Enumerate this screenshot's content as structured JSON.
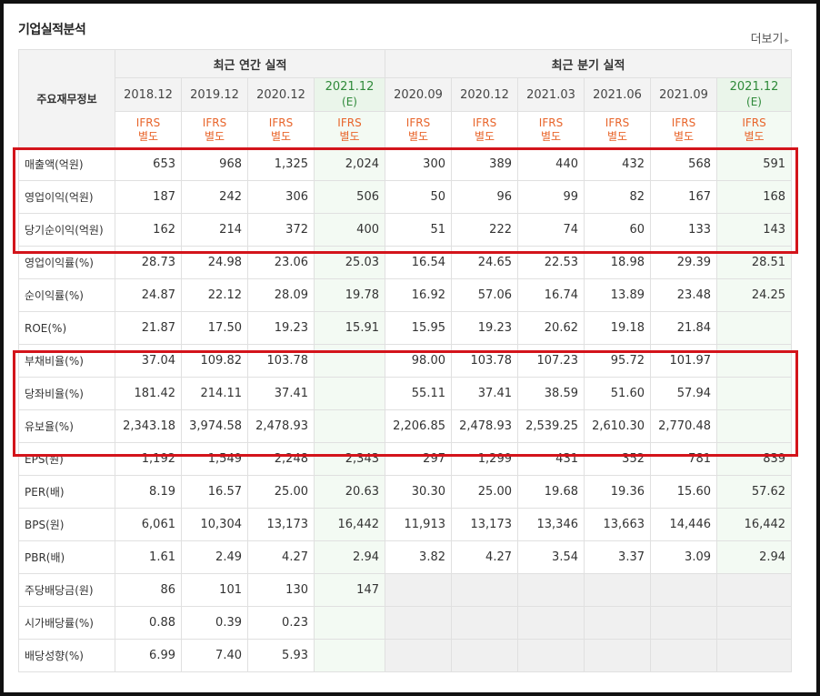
{
  "section_title": "기업실적분석",
  "more_label": "더보기",
  "more_arrow": "▸",
  "corner_label": "주요재무정보",
  "groups": {
    "annual": "최근 연간 실적",
    "quarterly": "최근 분기 실적"
  },
  "periods": [
    "2018.12",
    "2019.12",
    "2020.12",
    "2021.12",
    "2020.09",
    "2020.12",
    "2021.03",
    "2021.06",
    "2021.09",
    "2021.12"
  ],
  "estimate_mark": "(E)",
  "ifrs_top": "IFRS",
  "ifrs_bottom": "별도",
  "rows": [
    {
      "label": "매출액(억원)",
      "values": [
        "653",
        "968",
        "1,325",
        "2,024",
        "300",
        "389",
        "440",
        "432",
        "568",
        "591"
      ]
    },
    {
      "label": "영업이익(억원)",
      "values": [
        "187",
        "242",
        "306",
        "506",
        "50",
        "96",
        "99",
        "82",
        "167",
        "168"
      ]
    },
    {
      "label": "당기순이익(억원)",
      "values": [
        "162",
        "214",
        "372",
        "400",
        "51",
        "222",
        "74",
        "60",
        "133",
        "143"
      ]
    },
    {
      "label": "영업이익률(%)",
      "values": [
        "28.73",
        "24.98",
        "23.06",
        "25.03",
        "16.54",
        "24.65",
        "22.53",
        "18.98",
        "29.39",
        "28.51"
      ]
    },
    {
      "label": "순이익률(%)",
      "values": [
        "24.87",
        "22.12",
        "28.09",
        "19.78",
        "16.92",
        "57.06",
        "16.74",
        "13.89",
        "23.48",
        "24.25"
      ]
    },
    {
      "label": "ROE(%)",
      "values": [
        "21.87",
        "17.50",
        "19.23",
        "15.91",
        "15.95",
        "19.23",
        "20.62",
        "19.18",
        "21.84",
        ""
      ]
    },
    {
      "label": "부채비율(%)",
      "values": [
        "37.04",
        "109.82",
        "103.78",
        "",
        "98.00",
        "103.78",
        "107.23",
        "95.72",
        "101.97",
        ""
      ]
    },
    {
      "label": "당좌비율(%)",
      "values": [
        "181.42",
        "214.11",
        "37.41",
        "",
        "55.11",
        "37.41",
        "38.59",
        "51.60",
        "57.94",
        ""
      ]
    },
    {
      "label": "유보율(%)",
      "values": [
        "2,343.18",
        "3,974.58",
        "2,478.93",
        "",
        "2,206.85",
        "2,478.93",
        "2,539.25",
        "2,610.30",
        "2,770.48",
        ""
      ]
    },
    {
      "label": "EPS(원)",
      "values": [
        "1,192",
        "1,549",
        "2,248",
        "2,343",
        "297",
        "1,299",
        "431",
        "352",
        "781",
        "839"
      ]
    },
    {
      "label": "PER(배)",
      "values": [
        "8.19",
        "16.57",
        "25.00",
        "20.63",
        "30.30",
        "25.00",
        "19.68",
        "19.36",
        "15.60",
        "57.62"
      ]
    },
    {
      "label": "BPS(원)",
      "values": [
        "6,061",
        "10,304",
        "13,173",
        "16,442",
        "11,913",
        "13,173",
        "13,346",
        "13,663",
        "14,446",
        "16,442"
      ]
    },
    {
      "label": "PBR(배)",
      "values": [
        "1.61",
        "2.49",
        "4.27",
        "2.94",
        "3.82",
        "4.27",
        "3.54",
        "3.37",
        "3.09",
        "2.94"
      ]
    },
    {
      "label": "주당배당금(원)",
      "values": [
        "86",
        "101",
        "130",
        "147"
      ]
    },
    {
      "label": "시가배당률(%)",
      "values": [
        "0.88",
        "0.39",
        "0.23",
        ""
      ]
    },
    {
      "label": "배당성향(%)",
      "values": [
        "6.99",
        "7.40",
        "5.93",
        ""
      ]
    }
  ],
  "colors": {
    "highlight_border": "#d3141b",
    "ifrs_text": "#e8642a",
    "estimate_text": "#2f8a3a"
  }
}
